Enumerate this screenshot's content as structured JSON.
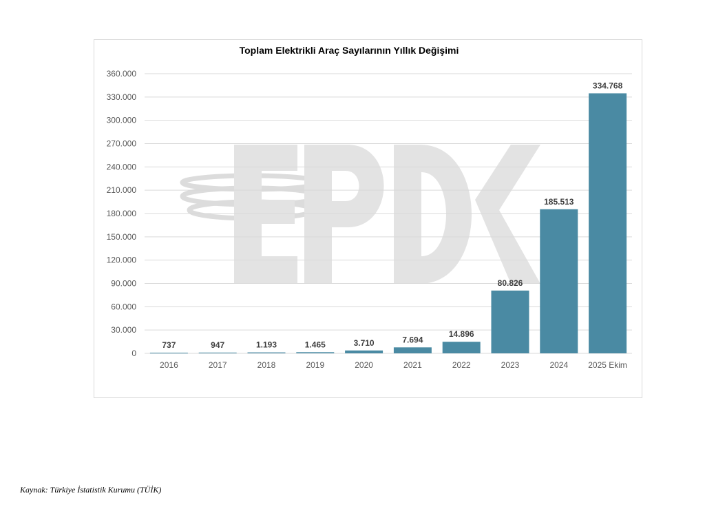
{
  "watermark": "EPDK",
  "chart_data": {
    "type": "bar",
    "title": "Toplam Elektrikli Araç Sayılarının Yıllık Değişimi",
    "xlabel": "",
    "ylabel": "",
    "categories": [
      "2016",
      "2017",
      "2018",
      "2019",
      "2020",
      "2021",
      "2022",
      "2023",
      "2024",
      "2025 Ekim"
    ],
    "values": [
      737,
      947,
      1193,
      1465,
      3710,
      7694,
      14896,
      80826,
      185513,
      334768
    ],
    "value_labels": [
      "737",
      "947",
      "1.193",
      "1.465",
      "3.710",
      "7.694",
      "14.896",
      "80.826",
      "185.513",
      "334.768"
    ],
    "ylim": [
      0,
      360000
    ],
    "yticks": [
      0,
      30000,
      60000,
      90000,
      120000,
      150000,
      180000,
      210000,
      240000,
      270000,
      300000,
      330000,
      360000
    ],
    "ytick_labels": [
      "0",
      "30.000",
      "60.000",
      "90.000",
      "120.000",
      "150.000",
      "180.000",
      "210.000",
      "240.000",
      "270.000",
      "300.000",
      "330.000",
      "360.000"
    ],
    "grid": true,
    "legend": "none",
    "bar_color": "#4a8aa3"
  },
  "source": "Kaynak: Türkiye İstatistik Kurumu (TÜİK)"
}
